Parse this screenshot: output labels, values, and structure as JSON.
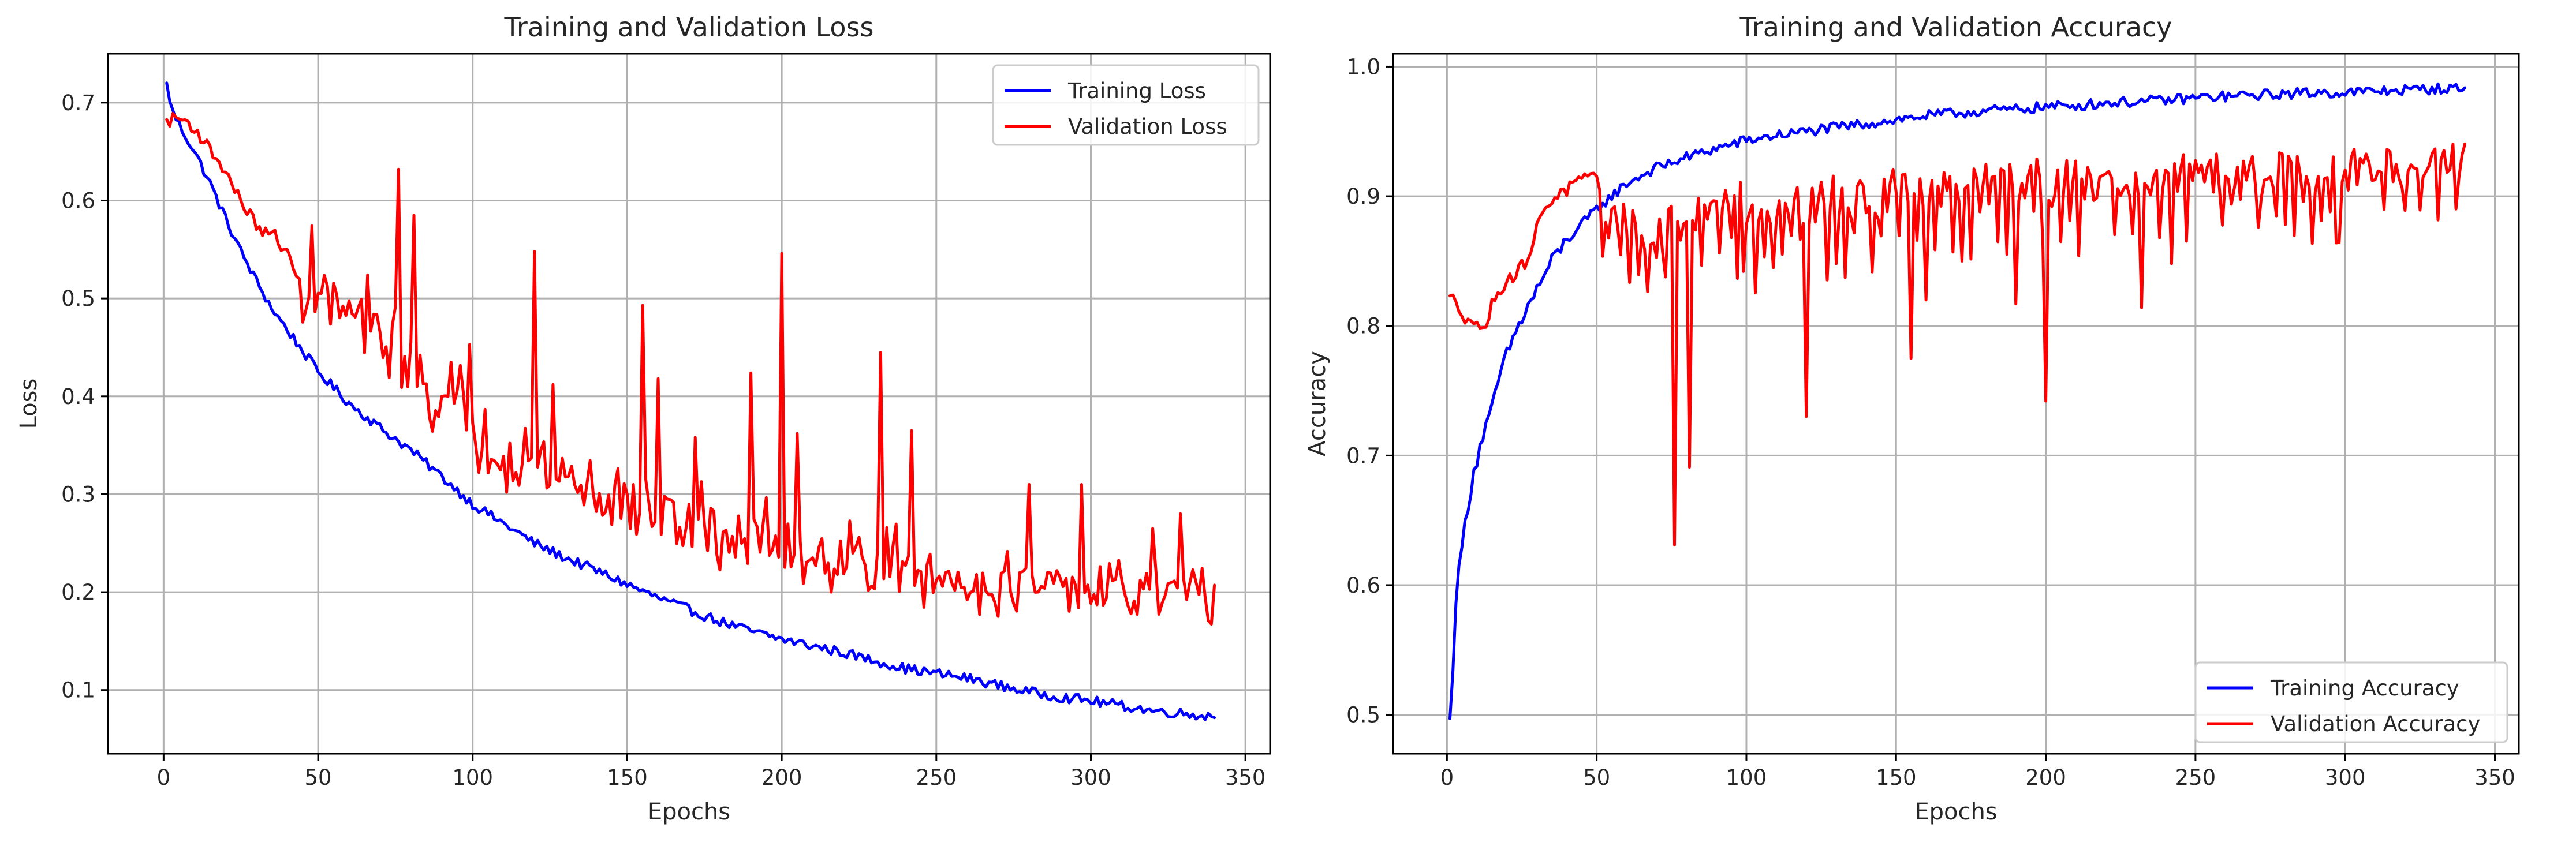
{
  "chart_data": [
    {
      "type": "line",
      "title": "Training and Validation Loss",
      "xlabel": "Epochs",
      "ylabel": "Loss",
      "xlim": [
        -18,
        358
      ],
      "ylim": [
        0.035,
        0.75
      ],
      "xticks": [
        0,
        50,
        100,
        150,
        200,
        250,
        300,
        350
      ],
      "yticks": [
        0.1,
        0.2,
        0.3,
        0.4,
        0.5,
        0.6,
        0.7
      ],
      "grid": true,
      "legend_position": "upper-right",
      "series": [
        {
          "name": "Training Loss",
          "color": "#0000ff",
          "style": "noisy-decay",
          "points": [
            [
              1,
              0.718
            ],
            [
              3,
              0.69
            ],
            [
              6,
              0.672
            ],
            [
              10,
              0.65
            ],
            [
              15,
              0.618
            ],
            [
              20,
              0.582
            ],
            [
              25,
              0.548
            ],
            [
              30,
              0.518
            ],
            [
              35,
              0.49
            ],
            [
              40,
              0.468
            ],
            [
              50,
              0.425
            ],
            [
              60,
              0.393
            ],
            [
              70,
              0.368
            ],
            [
              80,
              0.345
            ],
            [
              90,
              0.318
            ],
            [
              100,
              0.29
            ],
            [
              110,
              0.27
            ],
            [
              120,
              0.25
            ],
            [
              130,
              0.235
            ],
            [
              140,
              0.222
            ],
            [
              150,
              0.208
            ],
            [
              160,
              0.194
            ],
            [
              170,
              0.182
            ],
            [
              180,
              0.17
            ],
            [
              190,
              0.16
            ],
            [
              200,
              0.152
            ],
            [
              210,
              0.145
            ],
            [
              220,
              0.138
            ],
            [
              230,
              0.13
            ],
            [
              240,
              0.122
            ],
            [
              250,
              0.117
            ],
            [
              260,
              0.112
            ],
            [
              270,
              0.105
            ],
            [
              280,
              0.098
            ],
            [
              290,
              0.093
            ],
            [
              300,
              0.089
            ],
            [
              310,
              0.084
            ],
            [
              320,
              0.079
            ],
            [
              330,
              0.076
            ],
            [
              340,
              0.073
            ]
          ]
        },
        {
          "name": "Validation Loss",
          "color": "#ff0000",
          "style": "noisy-spiky",
          "points": [
            [
              1,
              0.68
            ],
            [
              4,
              0.685
            ],
            [
              8,
              0.68
            ],
            [
              12,
              0.665
            ],
            [
              16,
              0.648
            ],
            [
              20,
              0.63
            ],
            [
              24,
              0.605
            ],
            [
              28,
              0.585
            ],
            [
              32,
              0.567
            ],
            [
              36,
              0.565
            ],
            [
              40,
              0.545
            ],
            [
              45,
              0.508
            ],
            [
              50,
              0.5
            ],
            [
              55,
              0.485
            ],
            [
              60,
              0.47
            ],
            [
              65,
              0.46
            ],
            [
              70,
              0.445
            ],
            [
              75,
              0.435
            ],
            [
              80,
              0.42
            ],
            [
              85,
              0.4
            ],
            [
              90,
              0.385
            ],
            [
              95,
              0.375
            ],
            [
              100,
              0.36
            ],
            [
              110,
              0.34
            ],
            [
              120,
              0.32
            ],
            [
              130,
              0.305
            ],
            [
              140,
              0.29
            ],
            [
              150,
              0.28
            ],
            [
              160,
              0.27
            ],
            [
              170,
              0.26
            ],
            [
              180,
              0.25
            ],
            [
              190,
              0.245
            ],
            [
              200,
              0.24
            ],
            [
              210,
              0.23
            ],
            [
              220,
              0.225
            ],
            [
              230,
              0.22
            ],
            [
              240,
              0.213
            ],
            [
              250,
              0.208
            ],
            [
              260,
              0.205
            ],
            [
              270,
              0.2
            ],
            [
              280,
              0.198
            ],
            [
              290,
              0.195
            ],
            [
              300,
              0.193
            ],
            [
              310,
              0.19
            ],
            [
              320,
              0.188
            ],
            [
              330,
              0.185
            ],
            [
              340,
              0.182
            ]
          ],
          "spikes": [
            [
              76,
              0.632
            ],
            [
              81,
              0.585
            ],
            [
              99,
              0.453
            ],
            [
              120,
              0.548
            ],
            [
              126,
              0.412
            ],
            [
              155,
              0.493
            ],
            [
              160,
              0.418
            ],
            [
              172,
              0.358
            ],
            [
              190,
              0.424
            ],
            [
              200,
              0.546
            ],
            [
              205,
              0.362
            ],
            [
              232,
              0.445
            ],
            [
              242,
              0.365
            ],
            [
              280,
              0.31
            ],
            [
              297,
              0.31
            ],
            [
              320,
              0.265
            ],
            [
              329,
              0.28
            ]
          ]
        }
      ]
    },
    {
      "type": "line",
      "title": "Training and Validation Accuracy",
      "xlabel": "Epochs",
      "ylabel": "Accuracy",
      "xlim": [
        -18,
        358
      ],
      "ylim": [
        0.47,
        1.01
      ],
      "xticks": [
        0,
        50,
        100,
        150,
        200,
        250,
        300,
        350
      ],
      "yticks": [
        0.5,
        0.6,
        0.7,
        0.8,
        0.9,
        1.0
      ],
      "grid": true,
      "legend_position": "lower-right",
      "series": [
        {
          "name": "Training Accuracy",
          "color": "#0000ff",
          "style": "noisy-rise",
          "points": [
            [
              1,
              0.494
            ],
            [
              2,
              0.54
            ],
            [
              3,
              0.59
            ],
            [
              5,
              0.63
            ],
            [
              7,
              0.662
            ],
            [
              9,
              0.688
            ],
            [
              12,
              0.715
            ],
            [
              15,
              0.735
            ],
            [
              18,
              0.765
            ],
            [
              22,
              0.79
            ],
            [
              26,
              0.81
            ],
            [
              30,
              0.828
            ],
            [
              35,
              0.85
            ],
            [
              40,
              0.866
            ],
            [
              45,
              0.878
            ],
            [
              50,
              0.89
            ],
            [
              55,
              0.9
            ],
            [
              60,
              0.91
            ],
            [
              70,
              0.922
            ],
            [
              80,
              0.93
            ],
            [
              90,
              0.937
            ],
            [
              100,
              0.943
            ],
            [
              110,
              0.947
            ],
            [
              120,
              0.95
            ],
            [
              130,
              0.953
            ],
            [
              140,
              0.956
            ],
            [
              150,
              0.959
            ],
            [
              160,
              0.962
            ],
            [
              170,
              0.964
            ],
            [
              180,
              0.966
            ],
            [
              190,
              0.967
            ],
            [
              200,
              0.969
            ],
            [
              210,
              0.97
            ],
            [
              220,
              0.972
            ],
            [
              230,
              0.973
            ],
            [
              240,
              0.974
            ],
            [
              250,
              0.976
            ],
            [
              260,
              0.977
            ],
            [
              270,
              0.978
            ],
            [
              280,
              0.979
            ],
            [
              290,
              0.98
            ],
            [
              300,
              0.98
            ],
            [
              310,
              0.981
            ],
            [
              320,
              0.982
            ],
            [
              330,
              0.983
            ],
            [
              340,
              0.983
            ]
          ]
        },
        {
          "name": "Validation Accuracy",
          "color": "#ff0000",
          "style": "noisy-dips",
          "points": [
            [
              1,
              0.82
            ],
            [
              3,
              0.82
            ],
            [
              6,
              0.808
            ],
            [
              9,
              0.803
            ],
            [
              11,
              0.795
            ],
            [
              14,
              0.808
            ],
            [
              17,
              0.828
            ],
            [
              20,
              0.835
            ],
            [
              24,
              0.842
            ],
            [
              28,
              0.858
            ],
            [
              32,
              0.89
            ],
            [
              36,
              0.9
            ],
            [
              40,
              0.905
            ],
            [
              45,
              0.912
            ],
            [
              50,
              0.912
            ],
            [
              55,
              0.905
            ],
            [
              60,
              0.898
            ],
            [
              65,
              0.895
            ],
            [
              70,
              0.897
            ],
            [
              80,
              0.902
            ],
            [
              90,
              0.908
            ],
            [
              100,
              0.91
            ],
            [
              110,
              0.912
            ],
            [
              120,
              0.915
            ],
            [
              130,
              0.918
            ],
            [
              140,
              0.919
            ],
            [
              150,
              0.921
            ],
            [
              160,
              0.922
            ],
            [
              170,
              0.923
            ],
            [
              180,
              0.924
            ],
            [
              190,
              0.925
            ],
            [
              200,
              0.926
            ],
            [
              210,
              0.927
            ],
            [
              220,
              0.928
            ],
            [
              230,
              0.929
            ],
            [
              240,
              0.93
            ],
            [
              250,
              0.931
            ],
            [
              260,
              0.932
            ],
            [
              270,
              0.933
            ],
            [
              280,
              0.934
            ],
            [
              290,
              0.935
            ],
            [
              300,
              0.936
            ],
            [
              310,
              0.937
            ],
            [
              320,
              0.938
            ],
            [
              330,
              0.939
            ],
            [
              340,
              0.952
            ]
          ],
          "spikes": [
            [
              76,
              0.631
            ],
            [
              81,
              0.691
            ],
            [
              99,
              0.842
            ],
            [
              120,
              0.73
            ],
            [
              155,
              0.775
            ],
            [
              160,
              0.82
            ],
            [
              172,
              0.85
            ],
            [
              190,
              0.817
            ],
            [
              200,
              0.742
            ],
            [
              205,
              0.865
            ],
            [
              232,
              0.814
            ],
            [
              242,
              0.848
            ],
            [
              280,
              0.878
            ],
            [
              297,
              0.864
            ],
            [
              320,
              0.889
            ]
          ]
        }
      ]
    }
  ]
}
